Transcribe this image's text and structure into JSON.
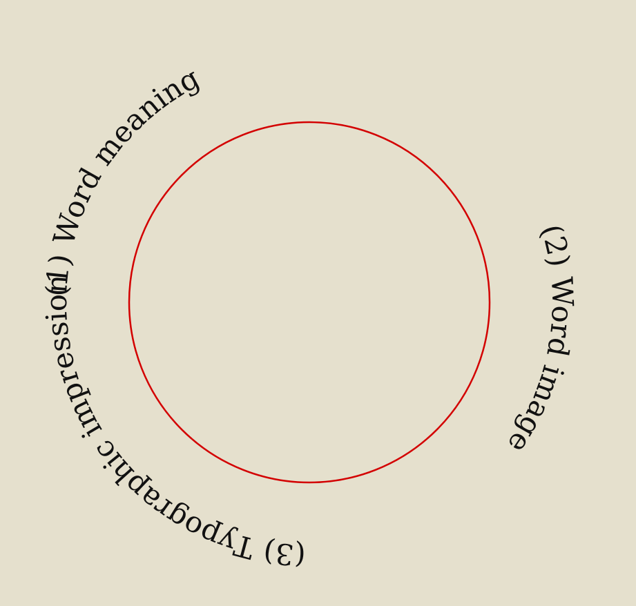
{
  "labels": {
    "one": "(1) Word meaning",
    "two": "(2) Word image",
    "three": "(3) Typographic impression"
  },
  "colors": {
    "background": "#e5e0cd",
    "circle": "#d30000",
    "text": "#111111"
  }
}
